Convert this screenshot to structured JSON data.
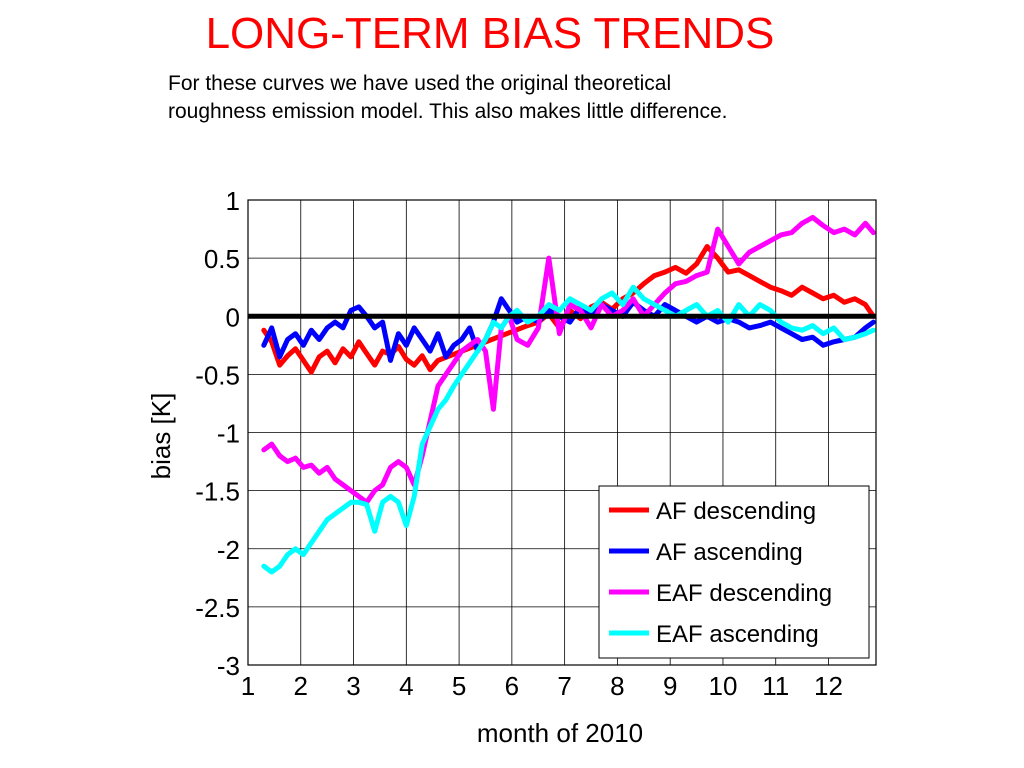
{
  "slide": {
    "title": "LONG-TERM BIAS TRENDS",
    "subtitle_line1": "For these curves we have used the original theoretical",
    "subtitle_line2": "roughness emission model. This also makes little difference.",
    "title_color": "#ff0000"
  },
  "chart_data": {
    "type": "line",
    "title": "",
    "xlabel": "month of 2010",
    "ylabel": "bias [K]",
    "xlim": [
      1,
      12.9
    ],
    "ylim": [
      -3,
      1
    ],
    "x_ticks": [
      1,
      2,
      3,
      4,
      5,
      6,
      7,
      8,
      9,
      10,
      11,
      12
    ],
    "x_tick_labels": [
      "1",
      "2",
      "3",
      "4",
      "5",
      "6",
      "7",
      "8",
      "9",
      "10",
      "11",
      "12"
    ],
    "y_ticks": [
      1,
      0.5,
      0,
      -0.5,
      -1,
      -1.5,
      -2,
      -2.5,
      -3
    ],
    "y_tick_labels": [
      "1",
      "0.5",
      "0",
      "-0.5",
      "-1",
      "-1.5",
      "-2",
      "-2.5",
      "-3"
    ],
    "grid": true,
    "zero_line": true,
    "legend_position": "bottom-right",
    "series": [
      {
        "name": "AF descending",
        "color": "#ff0000",
        "x": [
          1.3,
          1.45,
          1.6,
          1.75,
          1.9,
          2.05,
          2.2,
          2.35,
          2.5,
          2.65,
          2.8,
          2.95,
          3.1,
          3.25,
          3.4,
          3.55,
          3.7,
          3.85,
          4.0,
          4.15,
          4.3,
          4.45,
          4.6,
          6.3,
          6.5,
          6.7,
          6.9,
          7.1,
          7.3,
          7.5,
          7.7,
          7.9,
          8.1,
          8.3,
          8.5,
          8.7,
          8.9,
          9.1,
          9.3,
          9.5,
          9.7,
          9.9,
          10.1,
          10.3,
          10.5,
          10.7,
          10.9,
          11.1,
          11.3,
          11.5,
          11.7,
          11.9,
          12.1,
          12.3,
          12.5,
          12.7,
          12.85
        ],
        "y": [
          -0.12,
          -0.22,
          -0.42,
          -0.34,
          -0.28,
          -0.38,
          -0.48,
          -0.35,
          -0.3,
          -0.4,
          -0.28,
          -0.35,
          -0.22,
          -0.32,
          -0.42,
          -0.3,
          -0.33,
          -0.26,
          -0.37,
          -0.42,
          -0.34,
          -0.46,
          -0.38,
          -0.08,
          -0.05,
          0.02,
          -0.1,
          0.05,
          -0.02,
          0.08,
          0.12,
          0.06,
          0.15,
          0.2,
          0.28,
          0.35,
          0.38,
          0.42,
          0.37,
          0.45,
          0.6,
          0.5,
          0.38,
          0.4,
          0.35,
          0.3,
          0.25,
          0.22,
          0.18,
          0.25,
          0.2,
          0.15,
          0.18,
          0.12,
          0.15,
          0.1,
          0.0
        ]
      },
      {
        "name": "AF ascending",
        "color": "#0000ff",
        "x": [
          1.3,
          1.45,
          1.6,
          1.75,
          1.9,
          2.05,
          2.2,
          2.35,
          2.5,
          2.65,
          2.8,
          2.95,
          3.1,
          3.25,
          3.4,
          3.55,
          3.7,
          3.85,
          4.0,
          4.15,
          4.3,
          4.45,
          4.6,
          4.75,
          4.9,
          5.05,
          5.2,
          5.35,
          5.5,
          5.65,
          5.8,
          5.95,
          6.1,
          6.3,
          6.5,
          6.7,
          6.9,
          7.1,
          7.3,
          7.5,
          7.7,
          7.9,
          8.1,
          8.3,
          8.5,
          8.7,
          8.9,
          9.1,
          9.3,
          9.5,
          9.7,
          9.9,
          10.1,
          10.3,
          10.5,
          10.7,
          10.9,
          11.1,
          11.3,
          11.5,
          11.7,
          11.9,
          12.1,
          12.3,
          12.5,
          12.7,
          12.85
        ],
        "y": [
          -0.25,
          -0.1,
          -0.35,
          -0.2,
          -0.15,
          -0.25,
          -0.12,
          -0.2,
          -0.1,
          -0.05,
          -0.1,
          0.05,
          0.08,
          0.0,
          -0.1,
          -0.05,
          -0.38,
          -0.15,
          -0.25,
          -0.1,
          -0.2,
          -0.3,
          -0.15,
          -0.35,
          -0.25,
          -0.2,
          -0.1,
          -0.3,
          -0.2,
          -0.05,
          0.15,
          0.05,
          -0.05,
          0.0,
          -0.05,
          0.05,
          0.0,
          -0.05,
          0.08,
          0.02,
          0.1,
          0.05,
          0.0,
          0.12,
          0.05,
          0.0,
          0.1,
          0.05,
          0.0,
          -0.05,
          0.0,
          -0.05,
          -0.02,
          -0.05,
          -0.1,
          -0.08,
          -0.05,
          -0.1,
          -0.15,
          -0.2,
          -0.18,
          -0.25,
          -0.22,
          -0.2,
          -0.18,
          -0.1,
          -0.05
        ]
      },
      {
        "name": "EAF descending",
        "color": "#ff00ff",
        "x": [
          1.3,
          1.45,
          1.6,
          1.75,
          1.9,
          2.05,
          2.2,
          2.35,
          2.5,
          2.65,
          2.8,
          2.95,
          3.1,
          3.25,
          3.4,
          3.55,
          3.7,
          3.85,
          4.0,
          4.15,
          4.3,
          4.45,
          4.6,
          4.75,
          4.9,
          5.05,
          5.2,
          5.35,
          5.5,
          5.65,
          5.8,
          5.95,
          6.1,
          6.3,
          6.5,
          6.7,
          6.9,
          7.1,
          7.3,
          7.5,
          7.7,
          7.9,
          8.1,
          8.3,
          8.5,
          8.7,
          8.9,
          9.1,
          9.3,
          9.5,
          9.7,
          9.9,
          10.1,
          10.3,
          10.5,
          10.7,
          10.9,
          11.1,
          11.3,
          11.5,
          11.7,
          11.9,
          12.1,
          12.3,
          12.5,
          12.7,
          12.85
        ],
        "y": [
          -1.15,
          -1.1,
          -1.2,
          -1.25,
          -1.22,
          -1.3,
          -1.28,
          -1.35,
          -1.3,
          -1.4,
          -1.45,
          -1.5,
          -1.55,
          -1.6,
          -1.5,
          -1.45,
          -1.3,
          -1.25,
          -1.3,
          -1.45,
          -1.2,
          -0.9,
          -0.6,
          -0.5,
          -0.4,
          -0.3,
          -0.25,
          -0.2,
          -0.3,
          -0.8,
          -0.1,
          0.0,
          -0.2,
          -0.25,
          -0.1,
          0.5,
          -0.15,
          0.1,
          0.05,
          -0.1,
          0.1,
          0.0,
          0.05,
          0.15,
          0.0,
          0.1,
          0.2,
          0.28,
          0.3,
          0.35,
          0.38,
          0.75,
          0.6,
          0.45,
          0.55,
          0.6,
          0.65,
          0.7,
          0.72,
          0.8,
          0.85,
          0.78,
          0.72,
          0.75,
          0.7,
          0.8,
          0.72
        ]
      },
      {
        "name": "EAF ascending",
        "color": "#00ffff",
        "x": [
          1.3,
          1.45,
          1.6,
          1.75,
          1.9,
          2.05,
          2.2,
          2.35,
          2.5,
          2.65,
          2.8,
          2.95,
          3.1,
          3.25,
          3.4,
          3.55,
          3.7,
          3.85,
          4.0,
          4.15,
          4.3,
          4.45,
          4.6,
          4.75,
          4.9,
          5.05,
          5.2,
          5.35,
          5.5,
          5.65,
          5.8,
          5.95,
          6.1,
          6.3,
          6.5,
          6.7,
          6.9,
          7.1,
          7.3,
          7.5,
          7.7,
          7.9,
          8.1,
          8.3,
          8.5,
          8.7,
          8.9,
          9.1,
          9.3,
          9.5,
          9.7,
          9.9,
          10.1,
          10.3,
          10.5,
          10.7,
          10.9,
          11.1,
          11.3,
          11.5,
          11.7,
          11.9,
          12.1,
          12.3,
          12.5,
          12.7,
          12.85
        ],
        "y": [
          -2.15,
          -2.2,
          -2.15,
          -2.05,
          -2.0,
          -2.05,
          -1.95,
          -1.85,
          -1.75,
          -1.7,
          -1.65,
          -1.6,
          -1.6,
          -1.62,
          -1.85,
          -1.6,
          -1.55,
          -1.6,
          -1.8,
          -1.55,
          -1.1,
          -0.95,
          -0.8,
          -0.72,
          -0.6,
          -0.5,
          -0.4,
          -0.3,
          -0.2,
          -0.05,
          -0.1,
          0.0,
          0.05,
          -0.05,
          0.0,
          0.1,
          0.05,
          0.15,
          0.1,
          0.05,
          0.15,
          0.2,
          0.1,
          0.25,
          0.15,
          0.1,
          0.05,
          0.0,
          0.05,
          0.1,
          0.0,
          0.05,
          -0.05,
          0.1,
          0.0,
          0.1,
          0.05,
          -0.05,
          -0.1,
          -0.12,
          -0.08,
          -0.15,
          -0.1,
          -0.2,
          -0.18,
          -0.15,
          -0.12
        ]
      }
    ]
  }
}
